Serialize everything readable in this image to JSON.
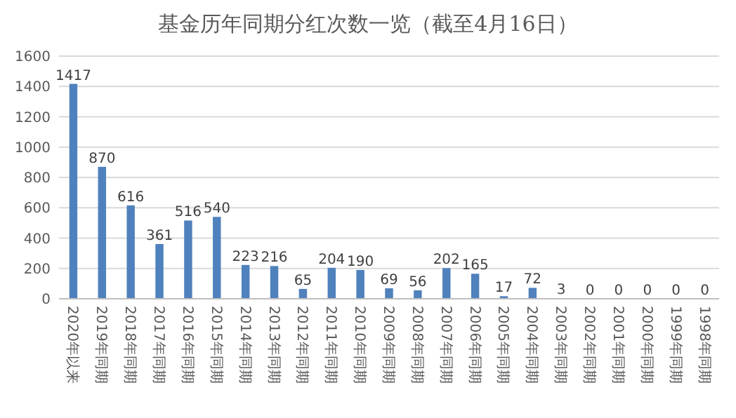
{
  "chart_data": {
    "type": "bar",
    "title": "基金历年同期分红次数一览（截至4月16日）",
    "categories": [
      "2020年以来",
      "2019年同期",
      "2018年同期",
      "2017年同期",
      "2016年同期",
      "2015年同期",
      "2014年同期",
      "2013年同期",
      "2012年同期",
      "2011年同期",
      "2010年同期",
      "2009年同期",
      "2008年同期",
      "2007年同期",
      "2006年同期",
      "2005年同期",
      "2004年同期",
      "2003年同期",
      "2002年同期",
      "2001年同期",
      "2000年同期",
      "1999年同期",
      "1998年同期"
    ],
    "values": [
      1417,
      870,
      616,
      361,
      516,
      540,
      223,
      216,
      65,
      204,
      190,
      69,
      56,
      202,
      165,
      17,
      72,
      3,
      0,
      0,
      0,
      0,
      0
    ],
    "color": "#4f81bd",
    "ylim": [
      0,
      1600
    ],
    "yticks": [
      0,
      200,
      400,
      600,
      800,
      1000,
      1200,
      1400,
      1600
    ],
    "grid": "y",
    "data_labels": true
  }
}
